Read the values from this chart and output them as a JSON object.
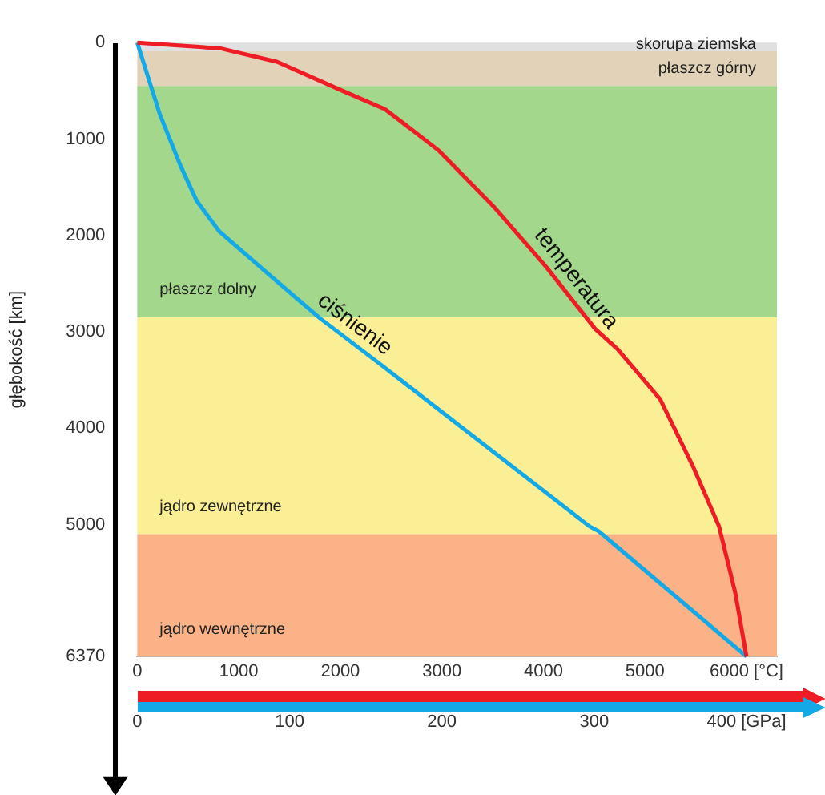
{
  "chart_data": {
    "type": "line",
    "ylabel": "głębokość [km]",
    "ylim": [
      6370,
      0
    ],
    "yticks": [
      0,
      1000,
      2000,
      3000,
      4000,
      5000,
      6370
    ],
    "xlim": [
      0,
      6300
    ],
    "xticks": [
      0,
      1000,
      2000,
      3000,
      4000,
      5000,
      {
        "value": 6000,
        "label": "6000 [°C]"
      }
    ],
    "x2lim": [
      0,
      420
    ],
    "x2ticks": [
      0,
      100,
      200,
      300,
      {
        "value": 400,
        "label": "400 [GPa]"
      }
    ],
    "series": [
      {
        "name": "temperatura",
        "color": "#ee1c24",
        "x": [
          0,
          820,
          1380,
          2000,
          2440,
          2970,
          3510,
          4030,
          4510,
          4730,
          5150,
          5470,
          5730,
          5890,
          6000
        ],
        "values": [
          0,
          60,
          200,
          490,
          690,
          1120,
          1700,
          2330,
          2970,
          3180,
          3700,
          4390,
          5020,
          5710,
          6370
        ]
      },
      {
        "name": "ciśnienie",
        "color": "#13a9e6",
        "axis": "x2",
        "x": [
          0,
          15,
          28.5,
          39,
          54,
          89,
          120,
          159,
          297,
          303,
          400
        ],
        "values": [
          0,
          750,
          1280,
          1640,
          1960,
          2440,
          2860,
          3330,
          5020,
          5070,
          6370
        ]
      }
    ],
    "bands": [
      {
        "axis": "y",
        "from": 0,
        "to": 90,
        "label": "skorupa ziemska",
        "color": "#e0e0e0"
      },
      {
        "axis": "y",
        "from": 90,
        "to": 450,
        "label": "płaszcz górny",
        "color": "#e2d3b8"
      },
      {
        "axis": "y",
        "from": 450,
        "to": 2850,
        "label": "płaszcz dolny",
        "color": "#a3d78c"
      },
      {
        "axis": "y",
        "from": 2850,
        "to": 5100,
        "label": "jądro zewnętrzne",
        "color": "#fbef95"
      },
      {
        "axis": "y",
        "from": 5100,
        "to": 6370,
        "label": "jądro wewnętrzne",
        "color": "#fbb287"
      }
    ],
    "grid": false,
    "legend": false,
    "marker": "none",
    "line_style": "solid"
  }
}
